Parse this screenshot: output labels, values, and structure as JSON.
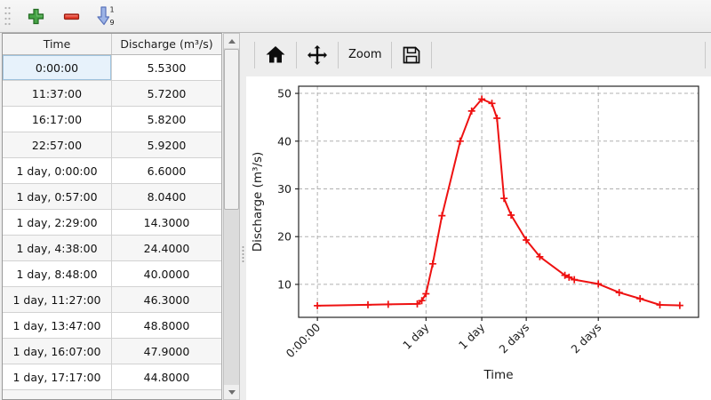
{
  "toolbar": {
    "buttons": [
      {
        "name": "add-row",
        "icon": "plus-icon"
      },
      {
        "name": "remove-row",
        "icon": "minus-icon"
      },
      {
        "name": "sort-rows",
        "icon": "sort-numeric-icon"
      }
    ]
  },
  "table": {
    "columns": [
      "Time",
      "Discharge (m³/s)"
    ],
    "rows": [
      [
        "0:00:00",
        "5.5300"
      ],
      [
        "11:37:00",
        "5.7200"
      ],
      [
        "16:17:00",
        "5.8200"
      ],
      [
        "22:57:00",
        "5.9200"
      ],
      [
        "1 day, 0:00:00",
        "6.6000"
      ],
      [
        "1 day, 0:57:00",
        "8.0400"
      ],
      [
        "1 day, 2:29:00",
        "14.3000"
      ],
      [
        "1 day, 4:38:00",
        "24.4000"
      ],
      [
        "1 day, 8:48:00",
        "40.0000"
      ],
      [
        "1 day, 11:27:00",
        "46.3000"
      ],
      [
        "1 day, 13:47:00",
        "48.8000"
      ],
      [
        "1 day, 16:07:00",
        "47.9000"
      ],
      [
        "1 day, 17:17:00",
        "44.8000"
      ]
    ],
    "selected": {
      "row": 0,
      "column": "Time"
    }
  },
  "chart_toolbar": {
    "zoom_label": "Zoom"
  },
  "chart_data": {
    "type": "line",
    "title": "",
    "xlabel": "Time",
    "ylabel": "Discharge (m³/s)",
    "x_unit": "days",
    "x": [
      0.0,
      0.484,
      0.678,
      0.956,
      1.0,
      1.04,
      1.104,
      1.193,
      1.367,
      1.477,
      1.574,
      1.671,
      1.72,
      1.787,
      1.855,
      2.0,
      2.13,
      2.37,
      2.41,
      2.46,
      2.69,
      2.89,
      3.09,
      3.28,
      3.47
    ],
    "y": [
      5.53,
      5.72,
      5.82,
      5.92,
      6.6,
      8.04,
      14.3,
      24.4,
      40.0,
      46.3,
      48.8,
      47.9,
      44.8,
      28.0,
      24.5,
      19.3,
      15.8,
      11.9,
      11.5,
      11.0,
      10.1,
      8.3,
      7.0,
      5.7,
      5.6
    ],
    "x_ticks": [
      {
        "x": 0.0,
        "label": "0:00:00"
      },
      {
        "x": 1.04,
        "label": "1 day"
      },
      {
        "x": 1.574,
        "label": "1 day"
      },
      {
        "x": 2.0,
        "label": "2 days"
      },
      {
        "x": 2.69,
        "label": "2 days"
      }
    ],
    "y_ticks": [
      10,
      20,
      30,
      40,
      50
    ],
    "x_range": [
      -0.18,
      3.65
    ],
    "y_range": [
      3.1,
      51.5
    ],
    "line_color": "#ee1111",
    "marker": "plus",
    "grid": "dashed",
    "grid_color": "#b0b0b0",
    "axis_color": "#262626",
    "legend": null
  }
}
